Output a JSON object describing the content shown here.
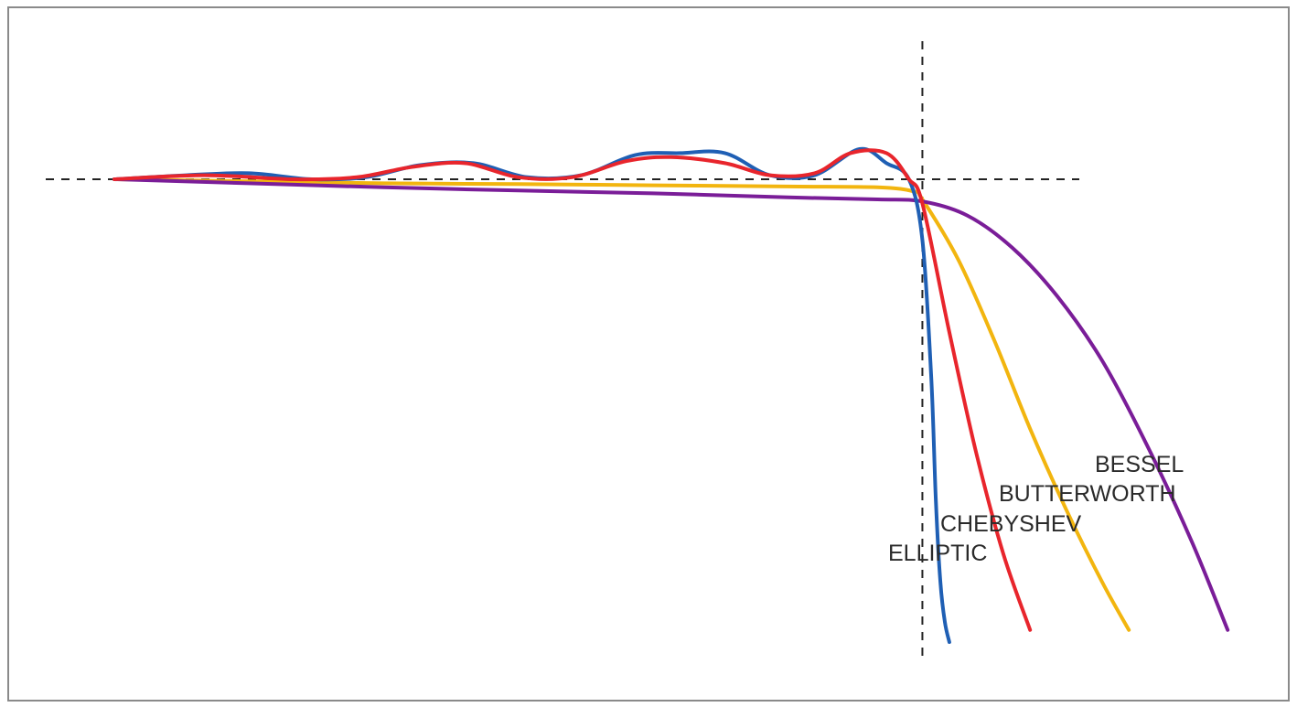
{
  "chart_data": {
    "type": "line",
    "title": "",
    "xlabel": "",
    "ylabel": "",
    "grid": false,
    "legend": "none",
    "reference_lines": {
      "horizontal_y": 0,
      "vertical_x": 1.0,
      "style": "dashed",
      "color": "#222222"
    },
    "xlim": [
      0.1,
      1.35
    ],
    "ylim": [
      -1.15,
      0.12
    ],
    "series": [
      {
        "name": "ELLIPTIC",
        "color": "#1f5fb4",
        "x": [
          0.1,
          0.18,
          0.25,
          0.32,
          0.38,
          0.44,
          0.5,
          0.56,
          0.62,
          0.68,
          0.73,
          0.78,
          0.83,
          0.88,
          0.93,
          0.96,
          0.985,
          1.0,
          1.01,
          1.015,
          1.02,
          1.025,
          1.03
        ],
        "y": [
          0.0,
          0.01,
          0.015,
          0.0,
          0.005,
          0.035,
          0.04,
          0.005,
          0.01,
          0.06,
          0.065,
          0.065,
          0.01,
          0.01,
          0.075,
          0.04,
          0.0,
          -0.15,
          -0.5,
          -0.8,
          -1.0,
          -1.1,
          -1.15
        ]
      },
      {
        "name": "CHEBYSHEV",
        "color": "#e8252c",
        "x": [
          0.1,
          0.2,
          0.3,
          0.37,
          0.43,
          0.49,
          0.55,
          0.61,
          0.67,
          0.72,
          0.78,
          0.83,
          0.88,
          0.92,
          0.96,
          0.985,
          1.0,
          1.03,
          1.06,
          1.09,
          1.12
        ],
        "y": [
          0.0,
          0.01,
          0.0,
          0.005,
          0.03,
          0.04,
          0.005,
          0.005,
          0.045,
          0.055,
          0.04,
          0.01,
          0.015,
          0.065,
          0.065,
          0.0,
          -0.06,
          -0.38,
          -0.68,
          -0.93,
          -1.12
        ]
      },
      {
        "name": "BUTTERWORTH",
        "color": "#f2b50f",
        "x": [
          0.1,
          0.25,
          0.4,
          0.55,
          0.7,
          0.85,
          0.95,
          0.99,
          1.0,
          1.04,
          1.08,
          1.12,
          1.16,
          1.2,
          1.23
        ],
        "y": [
          0.0,
          -0.005,
          -0.01,
          -0.012,
          -0.015,
          -0.018,
          -0.02,
          -0.03,
          -0.05,
          -0.2,
          -0.4,
          -0.62,
          -0.82,
          -1.0,
          -1.12
        ]
      },
      {
        "name": "BESSEL",
        "color": "#7a1d98",
        "x": [
          0.1,
          0.25,
          0.4,
          0.55,
          0.7,
          0.85,
          0.95,
          1.0,
          1.05,
          1.1,
          1.15,
          1.2,
          1.25,
          1.3,
          1.34
        ],
        "y": [
          0.0,
          -0.01,
          -0.02,
          -0.028,
          -0.035,
          -0.045,
          -0.05,
          -0.055,
          -0.09,
          -0.17,
          -0.29,
          -0.45,
          -0.66,
          -0.9,
          -1.12
        ]
      }
    ]
  }
}
